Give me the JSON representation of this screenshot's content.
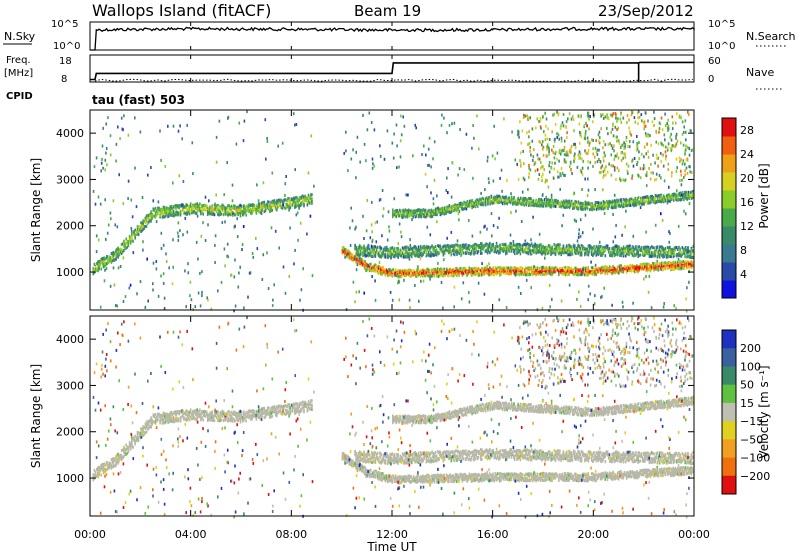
{
  "header": {
    "station": "Wallops Island (fitACF)",
    "beam": "Beam 19",
    "date": "23/Sep/2012"
  },
  "top_panel": {
    "left_label": "N.Sky",
    "right_label": "N.Search",
    "left_ticks": [
      "10^5",
      "10^0"
    ],
    "right_ticks": [
      "10^5",
      "10^0"
    ]
  },
  "freq_panel": {
    "left_label_1": "Freq.",
    "left_label_2": "[MHz]",
    "cpid_label": "CPID",
    "right_label": "Nave",
    "left_ticks": [
      "18",
      "8"
    ],
    "right_ticks": [
      "60",
      "0"
    ],
    "program_label": "tau (fast) 503"
  },
  "colors": {
    "power": [
      "#1010e0",
      "#2a4aa8",
      "#3a7a90",
      "#3a8a6a",
      "#4aaa4a",
      "#8ccc28",
      "#d8d020",
      "#f0a018",
      "#f06010",
      "#e01010"
    ],
    "velocity": [
      "#2030c0",
      "#3a60a0",
      "#3a8a6a",
      "#60c040",
      "#c0c0b0",
      "#e0d020",
      "#f0a020",
      "#f07010",
      "#e01010"
    ],
    "ground_scatter": "#b8b8a8"
  },
  "chart_data": [
    {
      "type": "line",
      "title": "N.Sky / N.Search",
      "x_range_hours": [
        0,
        24
      ],
      "series": [
        {
          "name": "N.Sky",
          "x": [
            0,
            0.2,
            0.25,
            4,
            8,
            12,
            16,
            20,
            24
          ],
          "values": [
            1,
            1,
            4000,
            6000,
            5000,
            3500,
            4000,
            6000,
            5500
          ]
        }
      ]
    },
    {
      "type": "line",
      "title": "Freq. / Nave",
      "x_range_hours": [
        0,
        24
      ],
      "series": [
        {
          "name": "Freq.",
          "x": [
            0,
            0.2,
            0.25,
            12,
            12.05,
            21.8,
            21.85,
            24
          ],
          "values": [
            8,
            8,
            10.5,
            10.5,
            14.8,
            14.8,
            15,
            15
          ]
        },
        {
          "name": "Nave",
          "x": [
            0,
            6,
            12,
            16,
            20,
            22,
            24
          ],
          "values": [
            4,
            4,
            4,
            3,
            2,
            4,
            4
          ]
        }
      ]
    },
    {
      "type": "heatmap",
      "ylabel": "Slant Range [km]",
      "xlabel": "Time UT",
      "x_ticks": [
        "00:00",
        "04:00",
        "08:00",
        "12:00",
        "16:00",
        "20:00",
        "00:00"
      ],
      "y_ticks": [
        1000,
        2000,
        3000,
        4000
      ],
      "ylim": [
        180,
        4500
      ],
      "colorbar": {
        "label": "Power [dB]",
        "ticks": [
          4,
          8,
          12,
          16,
          20,
          24,
          28
        ],
        "range": [
          0,
          30
        ]
      },
      "bands": [
        {
          "t": [
            0.1,
            1,
            2.5,
            4,
            6,
            8.8
          ],
          "r": [
            1100,
            1400,
            2300,
            2400,
            2350,
            2600
          ],
          "width": 220,
          "level": 0.55
        },
        {
          "t": [
            10,
            11,
            12,
            16,
            20,
            24
          ],
          "r": [
            1500,
            1150,
            1000,
            1050,
            1050,
            1200
          ],
          "width": 160,
          "level": 0.9
        },
        {
          "t": [
            10.5,
            12,
            16,
            20,
            24
          ],
          "r": [
            1500,
            1450,
            1550,
            1500,
            1450
          ],
          "width": 220,
          "level": 0.45
        },
        {
          "t": [
            12,
            13.5,
            16,
            20,
            24
          ],
          "r": [
            2300,
            2300,
            2600,
            2450,
            2700
          ],
          "width": 160,
          "level": 0.5
        }
      ]
    },
    {
      "type": "heatmap",
      "ylabel": "Slant Range [km]",
      "xlabel": "Time UT",
      "x_ticks": [
        "00:00",
        "04:00",
        "08:00",
        "12:00",
        "16:00",
        "20:00",
        "00:00"
      ],
      "y_ticks": [
        1000,
        2000,
        3000,
        4000
      ],
      "ylim": [
        180,
        4500
      ],
      "colorbar": {
        "label": "Velocity [m s^-1]",
        "ticks": [
          200,
          100,
          50,
          15,
          -15,
          -50,
          -100,
          -200
        ]
      }
    }
  ],
  "x_axis": {
    "label": "Time UT",
    "ticks": [
      "00:00",
      "04:00",
      "08:00",
      "12:00",
      "16:00",
      "20:00",
      "00:00"
    ]
  },
  "power_panel": {
    "ylabel": "Slant Range [km]",
    "y_ticks": [
      "1000",
      "2000",
      "3000",
      "4000"
    ],
    "cbar_label": "Power [dB]",
    "cbar_ticks": [
      "4",
      "8",
      "12",
      "16",
      "20",
      "24",
      "28"
    ]
  },
  "velocity_panel": {
    "ylabel": "Slant Range [km]",
    "y_ticks": [
      "1000",
      "2000",
      "3000",
      "4000"
    ],
    "cbar_label": "Velocity [m s⁻¹]",
    "cbar_ticks": [
      "200",
      "100",
      "50",
      "15",
      "−15",
      "−50",
      "−100",
      "−200"
    ]
  }
}
